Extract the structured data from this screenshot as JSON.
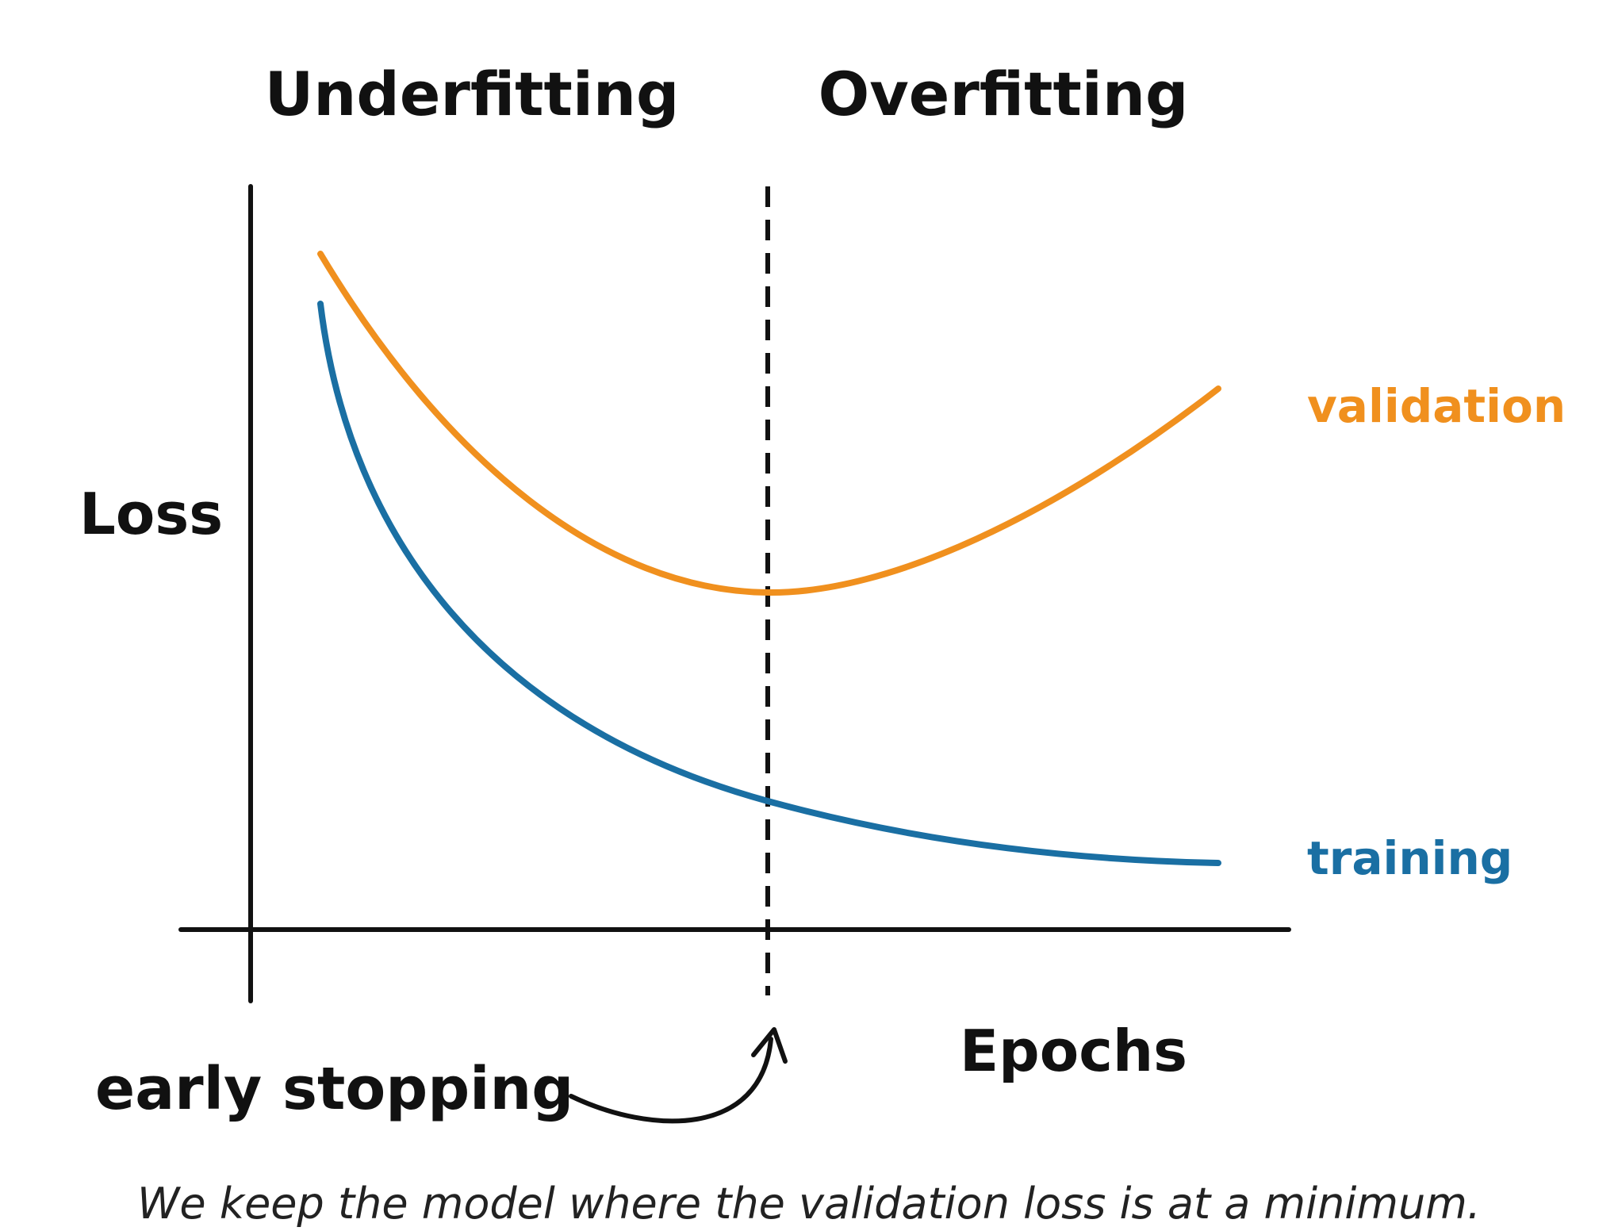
{
  "diagram": {
    "regions": {
      "left_label": "Underfitting",
      "right_label": "Overfitting"
    },
    "y_axis_label": "Loss",
    "x_axis_label": "Epochs",
    "curves": {
      "validation_label": "validation",
      "training_label": "training"
    },
    "marker_label": "early stopping",
    "caption": "We keep the model where the validation loss is at a minimum."
  },
  "colors": {
    "validation": "#F0901E",
    "training": "#1A6FA3",
    "axes": "#111111",
    "text": "#111111"
  }
}
